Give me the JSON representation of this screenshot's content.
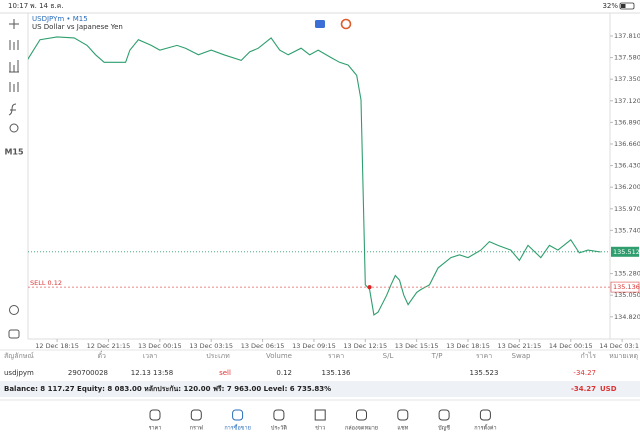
{
  "status_bar": {
    "time": "10:17",
    "date": "พ. 14 ธ.ค.",
    "battery": "32%"
  },
  "toolbar": {
    "timeframe": "M15"
  },
  "chart_data": {
    "type": "line",
    "title": "USDJPYm • M15",
    "subtitle": "US Dollar vs Japanese Yen",
    "color": "#2e9e6e",
    "x": [
      -7,
      -4,
      0,
      4,
      7,
      9,
      11,
      16,
      17,
      19,
      22,
      24,
      28,
      30,
      33,
      36,
      39,
      43,
      45,
      47,
      50,
      52,
      54,
      57,
      59,
      61,
      64,
      66,
      68,
      70,
      71,
      72,
      73,
      74,
      75,
      77,
      78,
      79,
      80,
      81,
      82,
      84,
      85,
      87,
      89,
      92,
      94,
      96,
      99,
      101,
      103,
      106,
      108,
      110,
      113,
      115,
      117,
      120,
      122,
      124,
      127
    ],
    "values": [
      137.55,
      137.77,
      137.8,
      137.79,
      137.71,
      137.61,
      137.53,
      137.53,
      137.66,
      137.77,
      137.71,
      137.66,
      137.71,
      137.68,
      137.61,
      137.66,
      137.61,
      137.55,
      137.64,
      137.68,
      137.79,
      137.66,
      137.61,
      137.68,
      137.61,
      137.66,
      137.58,
      137.53,
      137.5,
      137.39,
      137.13,
      135.16,
      135.11,
      134.84,
      134.87,
      135.05,
      135.16,
      135.26,
      135.21,
      135.05,
      134.95,
      135.08,
      135.11,
      135.16,
      135.34,
      135.45,
      135.48,
      135.45,
      135.53,
      135.62,
      135.58,
      135.53,
      135.42,
      135.58,
      135.45,
      135.58,
      135.53,
      135.64,
      135.5,
      135.53,
      135.51
    ],
    "xlim": [
      -6.8,
      128
    ],
    "xticks": [
      {
        "value": 0,
        "label": "12 Dec 18:15"
      },
      {
        "value": 12,
        "label": "12 Dec 21:15"
      },
      {
        "value": 24,
        "label": "13 Dec 00:15"
      },
      {
        "value": 36,
        "label": "13 Dec 03:15"
      },
      {
        "value": 48,
        "label": "13 Dec 06:15"
      },
      {
        "value": 60,
        "label": "13 Dec 09:15"
      },
      {
        "value": 72,
        "label": "13 Dec 12:15"
      },
      {
        "value": 84,
        "label": "13 Dec 15:15"
      },
      {
        "value": 96,
        "label": "13 Dec 18:15"
      },
      {
        "value": 108,
        "label": "13 Dec 21:15"
      },
      {
        "value": 120,
        "label": "14 Dec 00:15"
      },
      {
        "value": 132,
        "label": "14 Dec 03:1"
      }
    ],
    "ylim": [
      134.594,
      138.044
    ],
    "yticks": [
      {
        "value": 137.81,
        "label": "137.810"
      },
      {
        "value": 137.58,
        "label": "137.580"
      },
      {
        "value": 137.35,
        "label": "137.350"
      },
      {
        "value": 137.12,
        "label": "137.120"
      },
      {
        "value": 136.89,
        "label": "136.890"
      },
      {
        "value": 136.66,
        "label": "136.660"
      },
      {
        "value": 136.43,
        "label": "136.430"
      },
      {
        "value": 136.2,
        "label": "136.200"
      },
      {
        "value": 135.97,
        "label": "135.970"
      },
      {
        "value": 135.74,
        "label": "135.740"
      },
      {
        "value": 135.28,
        "label": "135.280"
      },
      {
        "value": 135.05,
        "label": "135.050"
      },
      {
        "value": 134.82,
        "label": "134.820"
      }
    ],
    "current_price": 135.512,
    "order": {
      "label": "SELL 0.12",
      "price": 135.136,
      "x": 73
    }
  },
  "table": {
    "header": [
      "สัญลักษณ์",
      "ตั๋ว",
      "เวลา",
      "ประเภท",
      "Volume",
      "ราคา",
      "S/L",
      "T/P",
      "ราคา",
      "Swap",
      "กำไร",
      "หมายเหตุ"
    ],
    "row": [
      "usdjpym",
      "290700028",
      "12.13 13:58",
      "sell",
      "0.12",
      "135.136",
      "135.523",
      "-34.27"
    ]
  },
  "summary": {
    "text": "Balance: 8 117.27 Equity: 8 083.00 หลักประกัน: 120.00 ฟรี: 7 963.00 Level: 6 735.83%",
    "profit": "-34.27",
    "currency": "USD"
  },
  "nav": [
    "ราคา",
    "กราฟ",
    "การซื้อขาย",
    "ประวัติ",
    "ข่าว",
    "กล่องจดหมาย",
    "แชท",
    "บัญชี",
    "การตั้งค่า"
  ]
}
